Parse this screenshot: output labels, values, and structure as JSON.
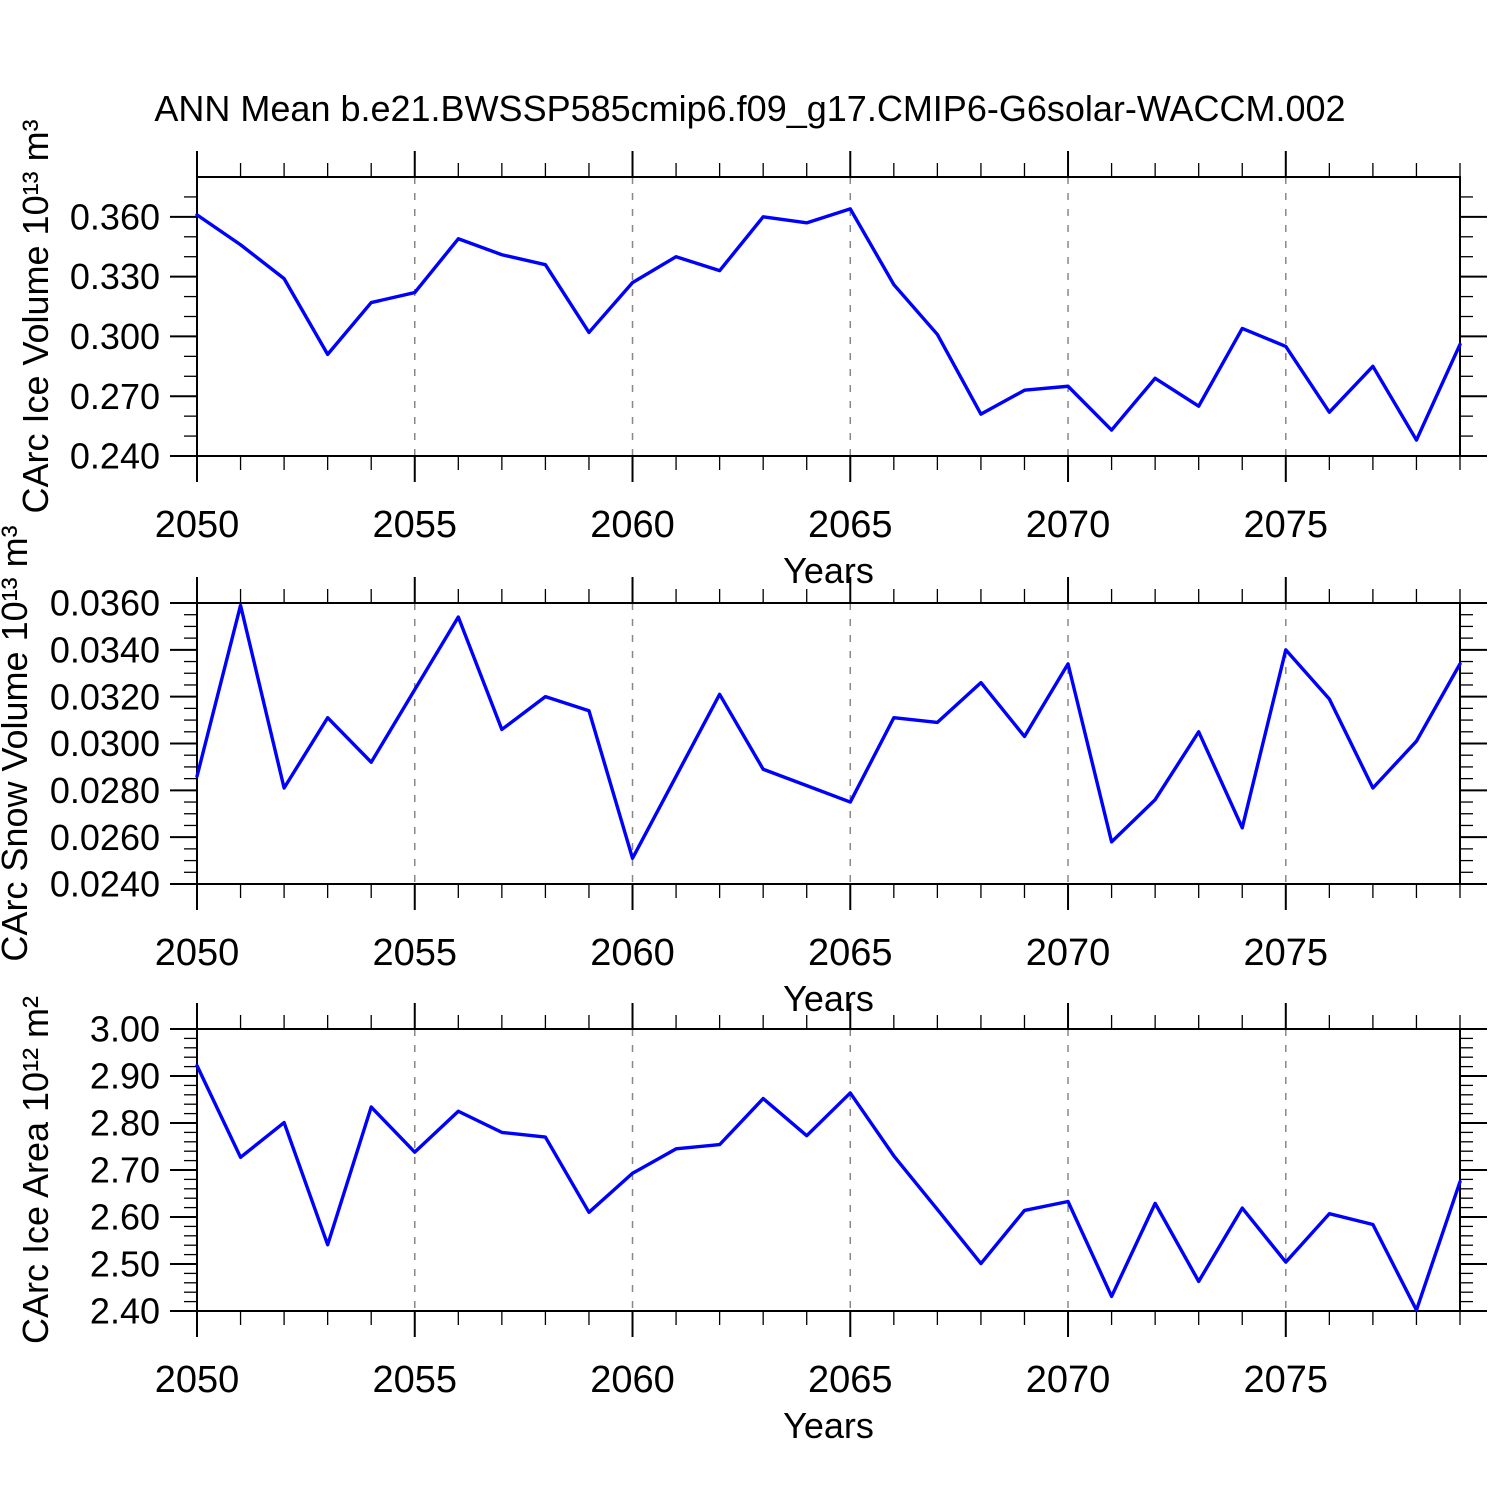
{
  "title": "ANN Mean b.e21.BWSSP585cmip6.f09_g17.CMIP6-G6solar-WACCM.002",
  "accent_color": "#0000ff",
  "chart_data": {
    "type": "line",
    "x_label": "Years",
    "years": [
      2050,
      2051,
      2052,
      2053,
      2054,
      2055,
      2056,
      2057,
      2058,
      2059,
      2060,
      2061,
      2062,
      2063,
      2064,
      2065,
      2066,
      2067,
      2068,
      2069,
      2070,
      2071,
      2072,
      2073,
      2074,
      2075,
      2076,
      2077,
      2078,
      2079
    ],
    "x_major_ticks": [
      2050,
      2055,
      2060,
      2065,
      2070,
      2075
    ],
    "x_major_labels": [
      "2050",
      "2055",
      "2060",
      "2065",
      "2070",
      "2075"
    ],
    "x_gridlines": [
      2055,
      2060,
      2065,
      2070,
      2075
    ],
    "xlim": [
      2050,
      2079
    ],
    "grid_color": "#888888",
    "axis_color": "#000000",
    "panels": [
      {
        "id": "ice-volume",
        "ylabel": "CArc Ice Volume 10¹³ m³",
        "xlabel": "Years",
        "ylim": [
          0.24,
          0.38
        ],
        "y_minor_step": 0.01,
        "y_major_values": [
          0.24,
          0.27,
          0.3,
          0.33,
          0.36
        ],
        "y_major_labels": [
          "0.240",
          "0.270",
          "0.300",
          "0.330",
          "0.360"
        ],
        "series_color": "#0000ff",
        "values": [
          0.361,
          0.346,
          0.329,
          0.291,
          0.317,
          0.322,
          0.349,
          0.341,
          0.336,
          0.302,
          0.327,
          0.34,
          0.333,
          0.36,
          0.357,
          0.364,
          0.326,
          0.301,
          0.261,
          0.273,
          0.275,
          0.253,
          0.279,
          0.265,
          0.304,
          0.295,
          0.262,
          0.285,
          0.248,
          0.296
        ]
      },
      {
        "id": "snow-volume",
        "ylabel": "CArc Snow Volume 10¹³ m³",
        "xlabel": "Years",
        "ylim": [
          0.024,
          0.036
        ],
        "y_minor_step": 0.0005,
        "y_major_values": [
          0.024,
          0.026,
          0.028,
          0.03,
          0.032,
          0.034,
          0.036
        ],
        "y_major_labels": [
          "0.0240",
          "0.0260",
          "0.0280",
          "0.0300",
          "0.0320",
          "0.0340",
          "0.0360"
        ],
        "series_color": "#0000ff",
        "values": [
          0.0286,
          0.0359,
          0.0281,
          0.0311,
          0.0292,
          0.0323,
          0.0354,
          0.0306,
          0.032,
          0.0314,
          0.0251,
          0.0286,
          0.0321,
          0.0289,
          0.0282,
          0.0275,
          0.0311,
          0.0309,
          0.0326,
          0.0303,
          0.0334,
          0.0258,
          0.0276,
          0.0305,
          0.0264,
          0.034,
          0.0319,
          0.0281,
          0.0301,
          0.0334
        ]
      },
      {
        "id": "ice-area",
        "ylabel": "CArc Ice Area 10¹² m²",
        "xlabel": "Years",
        "ylim": [
          2.4,
          3.0
        ],
        "y_minor_step": 0.02,
        "y_major_values": [
          2.4,
          2.5,
          2.6,
          2.7,
          2.8,
          2.9,
          3.0
        ],
        "y_major_labels": [
          "2.40",
          "2.50",
          "2.60",
          "2.70",
          "2.80",
          "2.90",
          "3.00"
        ],
        "series_color": "#0000ff",
        "values": [
          2.922,
          2.727,
          2.801,
          2.541,
          2.834,
          2.738,
          2.825,
          2.78,
          2.77,
          2.61,
          2.693,
          2.745,
          2.754,
          2.852,
          2.773,
          2.864,
          2.73,
          2.616,
          2.501,
          2.614,
          2.633,
          2.431,
          2.629,
          2.463,
          2.619,
          2.504,
          2.607,
          2.584,
          2.402,
          2.675
        ]
      }
    ]
  }
}
